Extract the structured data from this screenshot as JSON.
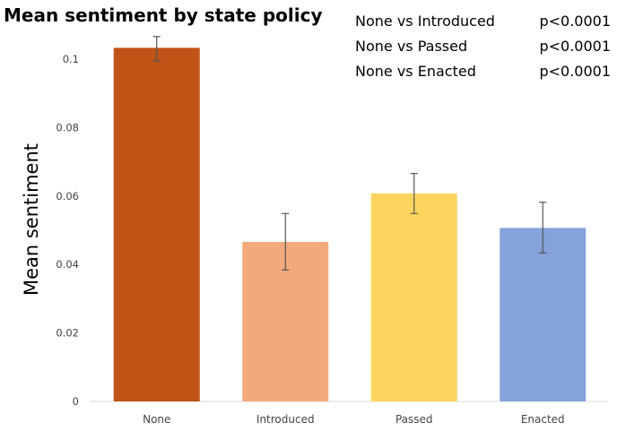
{
  "chart_data": {
    "type": "bar",
    "title": "Mean sentiment by state policy",
    "xlabel": "",
    "ylabel": "Mean sentiment",
    "ylim": [
      0,
      0.1
    ],
    "yticks": [
      "0",
      "0.02",
      "0.04",
      "0.06",
      "0.08",
      "0.1"
    ],
    "ytick_values": [
      0,
      0.02,
      0.04,
      0.06,
      0.08,
      0.1
    ],
    "grid": false,
    "categories": [
      "None",
      "Introduced",
      "Passed",
      "Enacted"
    ],
    "values": [
      0.1033,
      0.0466,
      0.0608,
      0.0507
    ],
    "error_low": [
      0.0995,
      0.0384,
      0.0549,
      0.0434
    ],
    "error_high": [
      0.1066,
      0.0549,
      0.0666,
      0.0582
    ],
    "colors": [
      "#C05315",
      "#F2A97B",
      "#FDD45E",
      "#85A2DA"
    ],
    "annotations": [
      {
        "comparison": "None vs Introduced",
        "p": "p<0.0001"
      },
      {
        "comparison": "None vs Passed",
        "p": "p<0.0001"
      },
      {
        "comparison": "None vs Enacted",
        "p": "p<0.0001"
      }
    ]
  }
}
